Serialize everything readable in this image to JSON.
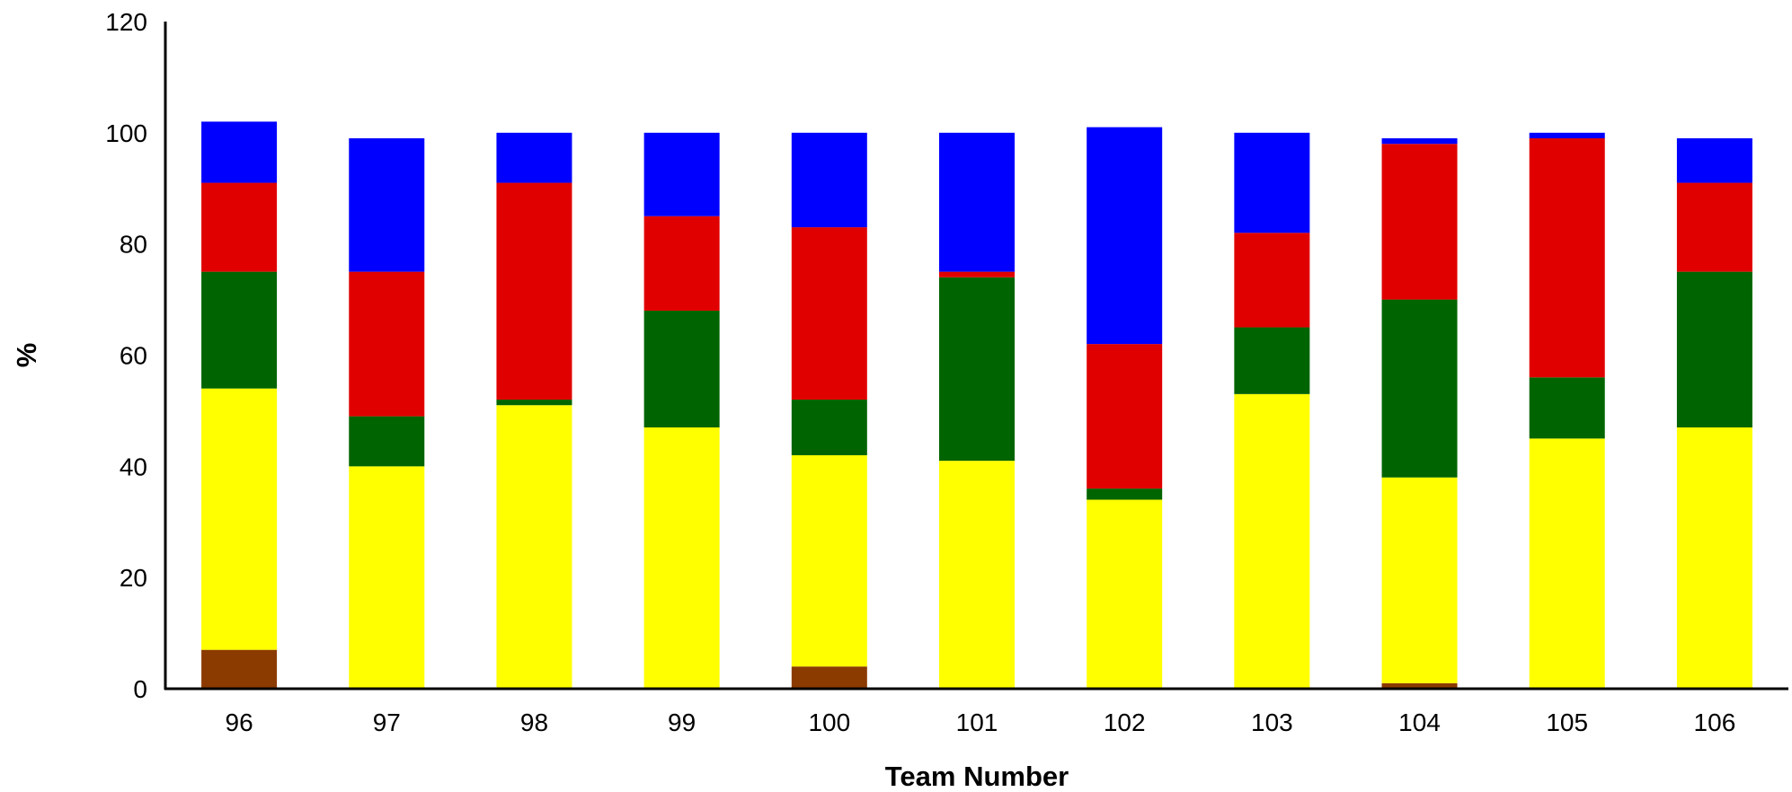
{
  "chart_data": {
    "type": "bar",
    "stacked": true,
    "title": "",
    "xlabel": "Team Number",
    "ylabel": "%",
    "ylim": [
      0,
      120
    ],
    "yticks": [
      0,
      20,
      40,
      60,
      80,
      100,
      120
    ],
    "grid": false,
    "legend": "none",
    "categories": [
      "96",
      "97",
      "98",
      "99",
      "100",
      "101",
      "102",
      "103",
      "104",
      "105",
      "106"
    ],
    "series": [
      {
        "color": "#8B3A00",
        "values": [
          7,
          0,
          0,
          0,
          4,
          0,
          0,
          0,
          1,
          0,
          0
        ]
      },
      {
        "color": "#FFFF00",
        "values": [
          47,
          40,
          51,
          47,
          38,
          41,
          34,
          53,
          37,
          45,
          47
        ]
      },
      {
        "color": "#006400",
        "values": [
          21,
          9,
          1,
          21,
          10,
          33,
          2,
          12,
          32,
          11,
          28
        ]
      },
      {
        "color": "#E00000",
        "values": [
          16,
          26,
          39,
          17,
          31,
          1,
          26,
          17,
          28,
          43,
          16
        ]
      },
      {
        "color": "#0000FF",
        "values": [
          11,
          24,
          9,
          15,
          17,
          25,
          39,
          18,
          1,
          1,
          8
        ]
      }
    ]
  }
}
